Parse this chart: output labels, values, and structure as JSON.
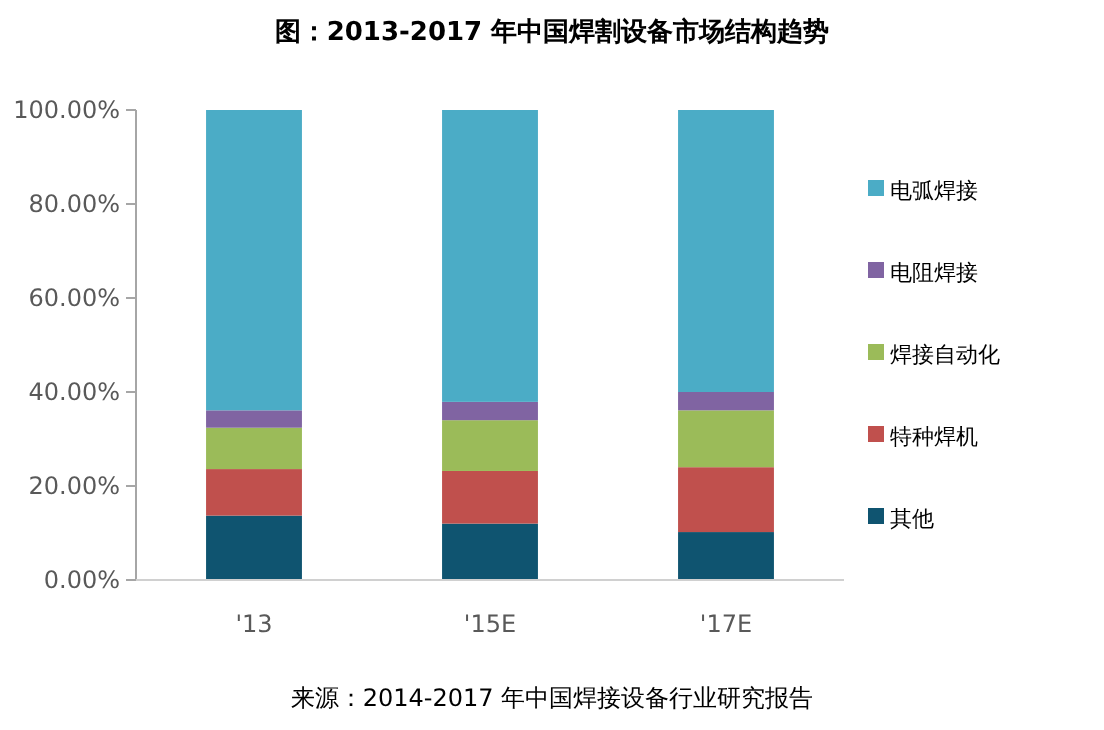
{
  "chart_data": {
    "type": "bar",
    "stacked": true,
    "title": "图：2013-2017 年中国焊割设备市场结构趋势",
    "categories": [
      "'13",
      "'15E",
      "'17E"
    ],
    "series": [
      {
        "name": "其他",
        "color": "#0f5470",
        "values": [
          13.7,
          12.0,
          10.2
        ]
      },
      {
        "name": "特种焊机",
        "color": "#c0504d",
        "values": [
          9.9,
          11.2,
          13.8
        ]
      },
      {
        "name": "焊接自动化",
        "color": "#9bbb59",
        "values": [
          8.8,
          10.8,
          12.1
        ]
      },
      {
        "name": "电阻焊接",
        "color": "#8064a2",
        "values": [
          3.7,
          3.9,
          3.9
        ]
      },
      {
        "name": "电弧焊接",
        "color": "#4bacc6",
        "values": [
          63.9,
          62.1,
          60.0
        ]
      }
    ],
    "ylim": [
      0,
      100
    ],
    "yticks": [
      {
        "value": 0,
        "label": "0.00%"
      },
      {
        "value": 20,
        "label": "20.00%"
      },
      {
        "value": 40,
        "label": "40.00%"
      },
      {
        "value": 60,
        "label": "60.00%"
      },
      {
        "value": 80,
        "label": "80.00%"
      },
      {
        "value": 100,
        "label": "100.00%"
      }
    ],
    "grid": false,
    "legend": "right",
    "annotations": [
      "来源：2014-2017 年中国焊接设备行业研究报告"
    ]
  }
}
